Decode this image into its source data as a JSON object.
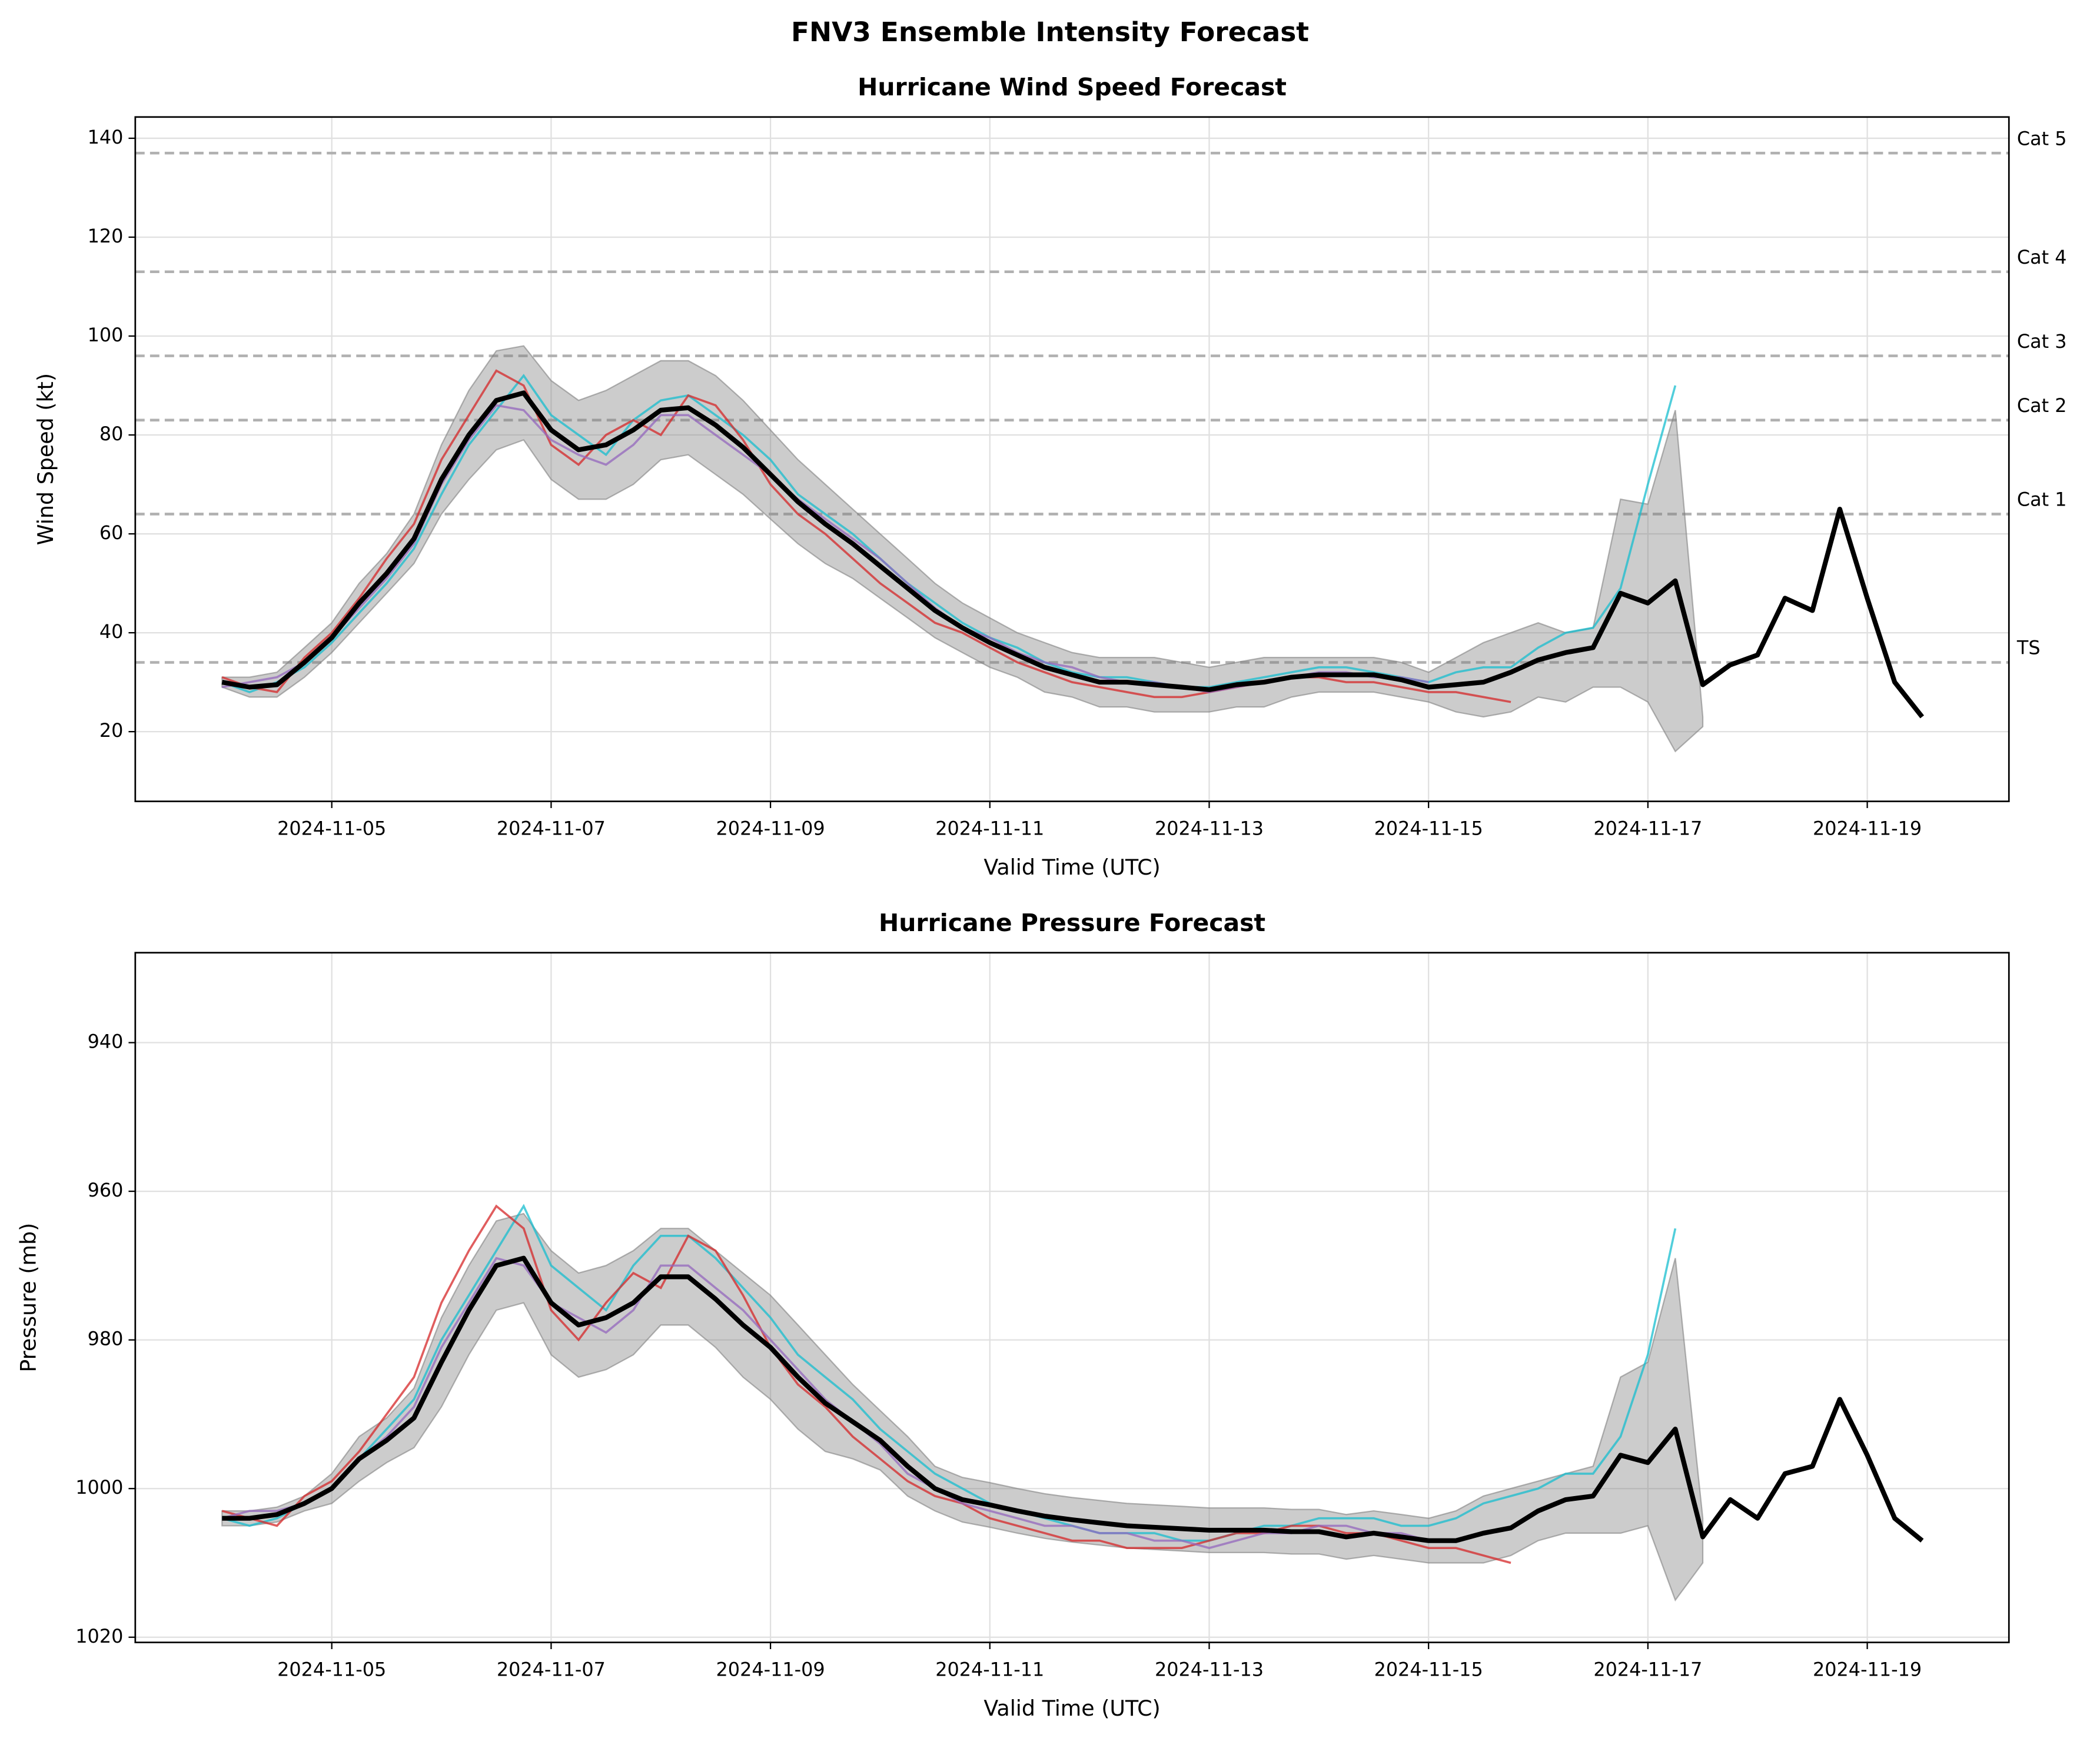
{
  "title": "FNV3 Ensemble Intensity Forecast",
  "chart_data": [
    {
      "type": "line",
      "title": "Hurricane Wind Speed Forecast",
      "xlabel": "Valid Time (UTC)",
      "ylabel": "Wind Speed (kt)",
      "x": [
        "2024-11-04 00:00",
        "2024-11-04 06:00",
        "2024-11-04 12:00",
        "2024-11-04 18:00",
        "2024-11-05 00:00",
        "2024-11-05 06:00",
        "2024-11-05 12:00",
        "2024-11-05 18:00",
        "2024-11-06 00:00",
        "2024-11-06 06:00",
        "2024-11-06 12:00",
        "2024-11-06 18:00",
        "2024-11-07 00:00",
        "2024-11-07 06:00",
        "2024-11-07 12:00",
        "2024-11-07 18:00",
        "2024-11-08 00:00",
        "2024-11-08 06:00",
        "2024-11-08 12:00",
        "2024-11-08 18:00",
        "2024-11-09 00:00",
        "2024-11-09 06:00",
        "2024-11-09 12:00",
        "2024-11-09 18:00",
        "2024-11-10 00:00",
        "2024-11-10 06:00",
        "2024-11-10 12:00",
        "2024-11-10 18:00",
        "2024-11-11 00:00",
        "2024-11-11 06:00",
        "2024-11-11 12:00",
        "2024-11-11 18:00",
        "2024-11-12 00:00",
        "2024-11-12 06:00",
        "2024-11-12 12:00",
        "2024-11-12 18:00",
        "2024-11-13 00:00",
        "2024-11-13 06:00",
        "2024-11-13 12:00",
        "2024-11-13 18:00",
        "2024-11-14 00:00",
        "2024-11-14 06:00",
        "2024-11-14 12:00",
        "2024-11-14 18:00",
        "2024-11-15 00:00",
        "2024-11-15 06:00",
        "2024-11-15 12:00",
        "2024-11-15 18:00",
        "2024-11-16 00:00",
        "2024-11-16 06:00",
        "2024-11-16 12:00",
        "2024-11-16 18:00",
        "2024-11-17 00:00",
        "2024-11-17 06:00",
        "2024-11-17 12:00",
        "2024-11-17 18:00",
        "2024-11-18 00:00",
        "2024-11-18 06:00",
        "2024-11-18 12:00",
        "2024-11-18 18:00",
        "2024-11-19 00:00",
        "2024-11-19 06:00",
        "2024-11-19 12:00"
      ],
      "xlim": [
        "2024-11-03 05:00",
        "2024-11-20 07:00"
      ],
      "xticks": [
        "2024-11-05",
        "2024-11-07",
        "2024-11-09",
        "2024-11-11",
        "2024-11-13",
        "2024-11-15",
        "2024-11-17",
        "2024-11-19"
      ],
      "ylim": [
        5.9,
        144.3
      ],
      "yticks": [
        20,
        40,
        60,
        80,
        100,
        120,
        140
      ],
      "grid": true,
      "thresholds": [
        {
          "label": "Cat 5",
          "value": 137
        },
        {
          "label": "Cat 4",
          "value": 113
        },
        {
          "label": "Cat 3",
          "value": 96
        },
        {
          "label": "Cat 2",
          "value": 83
        },
        {
          "label": "Cat 1",
          "value": 64
        },
        {
          "label": "TS",
          "value": 34
        }
      ],
      "threshold_color": "#b0b0b0",
      "spread": {
        "color": "#808080",
        "upper": [
          31,
          31,
          32,
          37,
          42,
          50,
          56,
          64,
          78,
          89,
          97,
          98,
          91,
          87,
          89,
          92,
          95,
          95,
          92,
          87,
          81,
          75,
          70,
          65,
          60,
          55,
          50,
          46,
          43,
          40,
          38,
          36,
          35,
          35,
          35,
          34,
          33,
          34,
          35,
          35,
          35,
          35,
          35,
          34,
          32,
          35,
          38,
          40,
          42,
          40,
          41,
          67,
          66,
          85,
          23,
          null,
          null,
          null,
          null,
          null,
          null,
          null,
          null
        ],
        "lower": [
          29,
          27,
          27,
          31,
          36,
          42,
          48,
          54,
          64,
          71,
          77,
          79,
          71,
          67,
          67,
          70,
          75,
          76,
          72,
          68,
          63,
          58,
          54,
          51,
          47,
          43,
          39,
          36,
          33,
          31,
          28,
          27,
          25,
          25,
          24,
          24,
          24,
          25,
          25,
          27,
          28,
          28,
          28,
          27,
          26,
          24,
          23,
          24,
          27,
          26,
          29,
          29,
          26,
          16,
          21,
          null,
          null,
          null,
          null,
          null,
          null,
          null,
          null
        ]
      },
      "members": [
        {
          "color": "#17becf",
          "values": [
            30,
            28,
            30,
            33,
            38,
            44,
            50,
            57,
            68,
            78,
            85,
            92,
            84,
            80,
            76,
            83,
            87,
            88,
            84,
            80,
            75,
            68,
            64,
            60,
            55,
            50,
            46,
            42,
            39,
            37,
            34,
            32,
            31,
            31,
            30,
            29,
            29,
            30,
            31,
            32,
            33,
            33,
            32,
            31,
            30,
            32,
            33,
            33,
            37,
            40,
            41,
            49,
            70,
            90,
            null,
            null,
            null,
            null,
            null,
            null,
            null,
            null,
            null
          ]
        },
        {
          "color": "#d62728",
          "values": [
            31,
            29,
            28,
            35,
            40,
            47,
            55,
            62,
            75,
            84,
            93,
            90,
            78,
            74,
            80,
            83,
            80,
            88,
            86,
            79,
            70,
            64,
            60,
            55,
            50,
            46,
            42,
            40,
            37,
            34,
            32,
            30,
            29,
            28,
            27,
            27,
            28,
            29,
            30,
            31,
            31,
            30,
            30,
            29,
            28,
            28,
            27,
            26,
            null,
            null,
            null,
            null,
            null,
            null,
            null,
            null,
            null,
            null,
            null,
            null,
            null,
            null,
            null
          ]
        },
        {
          "color": "#9467bd",
          "values": [
            29,
            30,
            31,
            34,
            39,
            45,
            51,
            58,
            70,
            79,
            86,
            85,
            79,
            76,
            74,
            78,
            84,
            84,
            80,
            76,
            72,
            67,
            63,
            59,
            55,
            50,
            45,
            41,
            39,
            36,
            34,
            33,
            31,
            30,
            30,
            29,
            28,
            29,
            30,
            31,
            32,
            32,
            31,
            31,
            30,
            null,
            null,
            null,
            null,
            null,
            null,
            null,
            null,
            null,
            null,
            null,
            null,
            null,
            null,
            null,
            null,
            null,
            null
          ]
        }
      ],
      "mean": {
        "color": "#000000",
        "values": [
          30,
          29,
          29.5,
          34,
          39,
          46,
          52,
          59,
          71,
          80,
          87,
          88.5,
          81,
          77,
          78,
          81,
          85,
          85.5,
          82,
          77.5,
          72,
          66.5,
          62,
          58,
          53.5,
          49,
          44.5,
          41,
          38,
          35.5,
          33,
          31.5,
          30,
          30,
          29.5,
          29,
          28.5,
          29.5,
          30,
          31,
          31.5,
          31.5,
          31.5,
          30.5,
          29,
          29.5,
          30,
          32,
          34.5,
          36,
          37,
          48,
          46,
          50.5,
          29.5,
          33.5,
          35.5,
          47,
          44.5,
          65,
          47,
          30,
          23
        ]
      }
    },
    {
      "type": "line",
      "title": "Hurricane Pressure Forecast",
      "xlabel": "Valid Time (UTC)",
      "ylabel": "Pressure (mb)",
      "x": [
        "2024-11-04 00:00",
        "2024-11-04 06:00",
        "2024-11-04 12:00",
        "2024-11-04 18:00",
        "2024-11-05 00:00",
        "2024-11-05 06:00",
        "2024-11-05 12:00",
        "2024-11-05 18:00",
        "2024-11-06 00:00",
        "2024-11-06 06:00",
        "2024-11-06 12:00",
        "2024-11-06 18:00",
        "2024-11-07 00:00",
        "2024-11-07 06:00",
        "2024-11-07 12:00",
        "2024-11-07 18:00",
        "2024-11-08 00:00",
        "2024-11-08 06:00",
        "2024-11-08 12:00",
        "2024-11-08 18:00",
        "2024-11-09 00:00",
        "2024-11-09 06:00",
        "2024-11-09 12:00",
        "2024-11-09 18:00",
        "2024-11-10 00:00",
        "2024-11-10 06:00",
        "2024-11-10 12:00",
        "2024-11-10 18:00",
        "2024-11-11 00:00",
        "2024-11-11 06:00",
        "2024-11-11 12:00",
        "2024-11-11 18:00",
        "2024-11-12 00:00",
        "2024-11-12 06:00",
        "2024-11-12 12:00",
        "2024-11-12 18:00",
        "2024-11-13 00:00",
        "2024-11-13 06:00",
        "2024-11-13 12:00",
        "2024-11-13 18:00",
        "2024-11-14 00:00",
        "2024-11-14 06:00",
        "2024-11-14 12:00",
        "2024-11-14 18:00",
        "2024-11-15 00:00",
        "2024-11-15 06:00",
        "2024-11-15 12:00",
        "2024-11-15 18:00",
        "2024-11-16 00:00",
        "2024-11-16 06:00",
        "2024-11-16 12:00",
        "2024-11-16 18:00",
        "2024-11-17 00:00",
        "2024-11-17 06:00",
        "2024-11-17 12:00",
        "2024-11-17 18:00",
        "2024-11-18 00:00",
        "2024-11-18 06:00",
        "2024-11-18 12:00",
        "2024-11-18 18:00",
        "2024-11-19 00:00",
        "2024-11-19 06:00",
        "2024-11-19 12:00"
      ],
      "xlim": [
        "2024-11-03 05:00",
        "2024-11-20 07:00"
      ],
      "xticks": [
        "2024-11-05",
        "2024-11-07",
        "2024-11-09",
        "2024-11-11",
        "2024-11-13",
        "2024-11-15",
        "2024-11-17",
        "2024-11-19"
      ],
      "ylim": [
        1020.7,
        927.9
      ],
      "yticks": [
        940,
        960,
        980,
        1000,
        1020
      ],
      "grid": true,
      "spread": {
        "color": "#808080",
        "upper": [
          1005,
          1005,
          1004.5,
          1003,
          1002,
          999,
          996.5,
          994.5,
          989,
          982,
          976,
          975,
          982,
          985,
          984,
          982,
          978,
          978,
          981,
          985,
          988,
          992,
          995,
          996,
          997.5,
          1001,
          1003,
          1004.5,
          1005.2,
          1006,
          1006.7,
          1007.2,
          1007.6,
          1008,
          1008.2,
          1008.4,
          1008.6,
          1008.6,
          1008.6,
          1008.8,
          1008.8,
          1009.5,
          1009,
          1009.5,
          1010,
          1010,
          1010,
          1009,
          1007,
          1006,
          1006,
          1006,
          1005,
          1015,
          1010,
          null,
          null,
          null,
          null,
          null,
          null,
          null,
          null
        ],
        "lower": [
          1003,
          1003,
          1002.5,
          1001,
          998,
          993,
          990.5,
          986.5,
          977,
          970,
          964,
          963,
          968,
          971,
          970,
          968,
          965,
          965,
          968,
          971,
          974,
          978,
          982,
          986,
          989.5,
          993,
          997,
          998.5,
          999.2,
          1000,
          1000.7,
          1001.2,
          1001.6,
          1002,
          1002.2,
          1002.4,
          1002.6,
          1002.6,
          1002.6,
          1002.8,
          1002.8,
          1003.5,
          1003,
          1003.5,
          1004,
          1003,
          1001,
          1000,
          999,
          998,
          997,
          985,
          983,
          969,
          1004,
          null,
          null,
          null,
          null,
          null,
          null,
          null,
          null
        ]
      },
      "members": [
        {
          "color": "#17becf",
          "values": [
            1004,
            1005,
            1004,
            1002,
            1000,
            996,
            992,
            988,
            980,
            974,
            968,
            962,
            970,
            973,
            976,
            970,
            966,
            966,
            969,
            973,
            977,
            982,
            985,
            988,
            992,
            995,
            998,
            1000,
            1002,
            1003,
            1004,
            1005,
            1006,
            1006,
            1006,
            1007,
            1007,
            1006,
            1005,
            1005,
            1004,
            1004,
            1004,
            1005,
            1005,
            1004,
            1002,
            1001,
            1000,
            998,
            998,
            993,
            982,
            965,
            null,
            null,
            null,
            null,
            null,
            null,
            null,
            null,
            null
          ]
        },
        {
          "color": "#d62728",
          "values": [
            1003,
            1004,
            1005,
            1001,
            999,
            995,
            990,
            985,
            975,
            968,
            962,
            965,
            976,
            980,
            975,
            971,
            973,
            966,
            968,
            974,
            981,
            986,
            989,
            993,
            996,
            999,
            1001,
            1002,
            1004,
            1005,
            1006,
            1007,
            1007,
            1008,
            1008,
            1008,
            1007,
            1006,
            1006,
            1005,
            1005,
            1006,
            1006,
            1007,
            1008,
            1008,
            1009,
            1010,
            null,
            null,
            null,
            null,
            null,
            null,
            null,
            null,
            null,
            null,
            null,
            null,
            null,
            null,
            null
          ]
        },
        {
          "color": "#9467bd",
          "values": [
            1004,
            1003,
            1003,
            1002,
            1000,
            996,
            993,
            989,
            981,
            975,
            969,
            970,
            975,
            977,
            979,
            976,
            970,
            970,
            973,
            976,
            980,
            984,
            988,
            991,
            994,
            998,
            1000,
            1002,
            1003,
            1004,
            1005,
            1005,
            1006,
            1006,
            1007,
            1007,
            1008,
            1007,
            1006,
            1006,
            1005,
            1005,
            1006,
            1006,
            1007,
            null,
            null,
            null,
            null,
            null,
            null,
            null,
            null,
            null,
            null,
            null,
            null,
            null,
            null,
            null,
            null,
            null,
            null
          ]
        }
      ],
      "mean": {
        "color": "#000000",
        "values": [
          1004,
          1004,
          1003.5,
          1002,
          1000,
          996,
          993.5,
          990.5,
          983,
          976,
          970,
          969,
          975,
          978,
          977,
          975,
          971.5,
          971.5,
          974.5,
          978,
          981,
          985,
          988.5,
          991,
          993.5,
          997,
          1000,
          1001.5,
          1002.2,
          1003,
          1003.7,
          1004.2,
          1004.6,
          1005,
          1005.2,
          1005.4,
          1005.6,
          1005.6,
          1005.6,
          1005.8,
          1005.8,
          1006.5,
          1006,
          1006.5,
          1007,
          1007,
          1006,
          1005.3,
          1003,
          1001.5,
          1001,
          995.5,
          996.5,
          992,
          1006.5,
          1001.5,
          1004,
          998,
          997,
          988,
          995.5,
          1004,
          1007
        ]
      }
    }
  ]
}
